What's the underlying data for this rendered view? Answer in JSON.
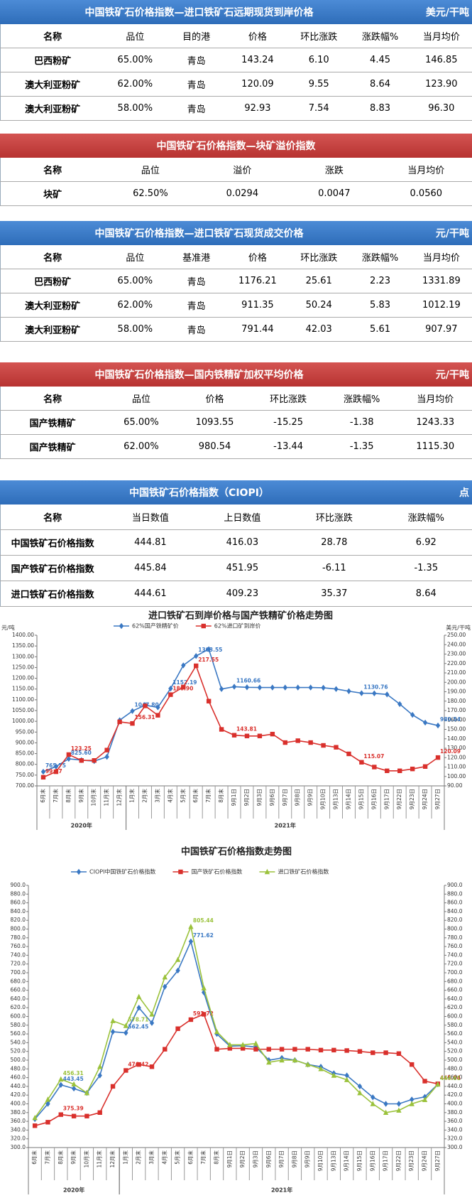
{
  "tables": [
    {
      "title": "中国铁矿石价格指数—进口铁矿石远期现货到岸价格",
      "unit": "美元/干吨",
      "columns": [
        "名称",
        "品位",
        "目的港",
        "价格",
        "环比涨跌",
        "涨跌幅%",
        "当月均价"
      ],
      "rows": [
        [
          "巴西粉矿",
          "65.00%",
          "青岛",
          "143.24",
          "6.10",
          "4.45",
          "146.85"
        ],
        [
          "澳大利亚粉矿",
          "62.00%",
          "青岛",
          "120.09",
          "9.55",
          "8.64",
          "123.90"
        ],
        [
          "澳大利亚粉矿",
          "58.00%",
          "青岛",
          "92.93",
          "7.54",
          "8.83",
          "96.30"
        ]
      ]
    },
    {
      "title": "中国铁矿石价格指数—块矿溢价指数",
      "columns": [
        "名称",
        "品位",
        "溢价",
        "涨跌",
        "当月均价"
      ],
      "rows": [
        [
          "块矿",
          "62.50%",
          "0.0294",
          "0.0047",
          "0.0560"
        ]
      ]
    },
    {
      "title": "中国铁矿石价格指数—进口铁矿石现货成交价格",
      "unit": "元/干吨",
      "columns": [
        "名称",
        "品位",
        "基准港",
        "价格",
        "环比涨跌",
        "涨跌幅%",
        "当月均价"
      ],
      "rows": [
        [
          "巴西粉矿",
          "65.00%",
          "青岛",
          "1176.21",
          "25.61",
          "2.23",
          "1331.89"
        ],
        [
          "澳大利亚粉矿",
          "62.00%",
          "青岛",
          "911.35",
          "50.24",
          "5.83",
          "1012.19"
        ],
        [
          "澳大利亚粉矿",
          "58.00%",
          "青岛",
          "791.44",
          "42.03",
          "5.61",
          "907.97"
        ]
      ]
    },
    {
      "title": "中国铁矿石价格指数—国内铁精矿加权平均价格",
      "unit": "元/干吨",
      "columns": [
        "名称",
        "品位",
        "价格",
        "环比涨跌",
        "涨跌幅%",
        "当月均价"
      ],
      "rows": [
        [
          "国产铁精矿",
          "65.00%",
          "1093.55",
          "-15.25",
          "-1.38",
          "1243.33"
        ],
        [
          "国产铁精矿",
          "62.00%",
          "980.54",
          "-13.44",
          "-1.35",
          "1115.30"
        ]
      ]
    },
    {
      "title": "中国铁矿石价格指数（CIOPI）",
      "unit": "点",
      "columns": [
        "名称",
        "当日数值",
        "上日数值",
        "环比涨跌",
        "涨跌幅%"
      ],
      "rows": [
        [
          "中国铁矿石价格指数",
          "444.81",
          "416.03",
          "28.78",
          "6.92"
        ],
        [
          "国产铁矿石价格指数",
          "445.84",
          "451.95",
          "-6.11",
          "-1.35"
        ],
        [
          "进口铁矿石价格指数",
          "444.61",
          "409.23",
          "35.37",
          "8.64"
        ]
      ]
    }
  ],
  "chart_data": [
    {
      "type": "line",
      "title": "进口铁矿石到岸价格与国产铁精矿价格走势图",
      "y_label": "元/吨",
      "y2_label": "美元/干吨",
      "categories": [
        "6月末",
        "7月末",
        "8月末",
        "9月末",
        "10月末",
        "11月末",
        "12月末",
        "1月末",
        "2月末",
        "3月末",
        "4月末",
        "5月末",
        "6月末",
        "7月末",
        "8月末",
        "9月1日",
        "9月2日",
        "9月3日",
        "9月6日",
        "9月7日",
        "9月8日",
        "9月9日",
        "9月10日",
        "9月13日",
        "9月14日",
        "9月15日",
        "9月16日",
        "9月17日",
        "9月22日",
        "9月23日",
        "9月24日",
        "9月27日"
      ],
      "groups": [
        {
          "label": "2020年",
          "count": 7
        },
        {
          "label": "2021年",
          "count": 25
        }
      ],
      "ylim": [
        700,
        1400
      ],
      "yticks": [
        {
          "value": 700,
          "label": "700.00"
        },
        {
          "value": 750,
          "label": "750.00"
        },
        {
          "value": 800,
          "label": "800.00"
        },
        {
          "value": 850,
          "label": "850.00"
        },
        {
          "value": 900,
          "label": "900.00"
        },
        {
          "value": 950,
          "label": "950.00"
        },
        {
          "value": 1000,
          "label": "1000.00"
        },
        {
          "value": 1050,
          "label": "1050.00"
        },
        {
          "value": 1100,
          "label": "1100.00"
        },
        {
          "value": 1150,
          "label": "1150.00"
        },
        {
          "value": 1200,
          "label": "1200.00"
        },
        {
          "value": 1250,
          "label": "1250.00"
        },
        {
          "value": 1300,
          "label": "1300.00"
        },
        {
          "value": 1350,
          "label": "1350.00"
        },
        {
          "value": 1400,
          "label": "1400.00"
        }
      ],
      "y2lim": [
        90,
        250
      ],
      "y2ticks": [
        {
          "value": 90,
          "label": "90.00"
        },
        {
          "value": 100,
          "label": "100.00"
        },
        {
          "value": 110,
          "label": "110.00"
        },
        {
          "value": 120,
          "label": "120.00"
        },
        {
          "value": 130,
          "label": "130.00"
        },
        {
          "value": 140,
          "label": "140.00"
        },
        {
          "value": 150,
          "label": "150.00"
        },
        {
          "value": 160,
          "label": "160.00"
        },
        {
          "value": 170,
          "label": "170.00"
        },
        {
          "value": 180,
          "label": "180.00"
        },
        {
          "value": 190,
          "label": "190.00"
        },
        {
          "value": 200,
          "label": "200.00"
        },
        {
          "value": 210,
          "label": "210.00"
        },
        {
          "value": 220,
          "label": "220.00"
        },
        {
          "value": 230,
          "label": "230.00"
        },
        {
          "value": 240,
          "label": "240.00"
        },
        {
          "value": 250,
          "label": "250.00"
        }
      ],
      "grid": false,
      "series": [
        {
          "name": "62%国产铁精矿价",
          "color": "#3a78c3",
          "marker": "diamond",
          "values": [
            765.75,
            790,
            825.6,
            820,
            815,
            835,
            1005,
            1047.8,
            1075,
            1065,
            1152.19,
            1260,
            1303.55,
            1335,
            1150,
            1160.66,
            1158,
            1157,
            1157,
            1157,
            1157,
            1157,
            1156,
            1150,
            1140,
            1130.76,
            1130,
            1125,
            1080,
            1030,
            993.98,
            980.54
          ],
          "value_labels": [
            "765.75",
            null,
            "825.60",
            null,
            null,
            null,
            null,
            "1047.80",
            null,
            null,
            "1152.19",
            null,
            "1303.55",
            null,
            null,
            "1160.66",
            null,
            null,
            null,
            null,
            null,
            null,
            null,
            null,
            null,
            "1130.76",
            null,
            null,
            null,
            null,
            null,
            "980.54"
          ]
        },
        {
          "name": "62%进口矿到岸价",
          "color": "#d9302c",
          "marker": "square",
          "axis": "y2",
          "values": [
            99.17,
            105,
            123.25,
            117,
            117,
            128,
            158,
            156.31,
            175,
            165,
            186.9,
            195,
            217.55,
            180,
            150,
            143.81,
            143,
            143,
            145,
            136,
            138,
            136,
            133,
            131,
            124,
            115.07,
            110,
            106,
            106,
            108,
            110.54,
            120.09
          ],
          "value_labels": [
            "99.17",
            null,
            "123.25",
            null,
            null,
            null,
            null,
            "156.31",
            null,
            null,
            "186.90",
            null,
            "217.55",
            null,
            null,
            "143.81",
            null,
            null,
            null,
            null,
            null,
            null,
            null,
            null,
            null,
            "115.07",
            null,
            null,
            null,
            null,
            null,
            "120.09"
          ]
        }
      ]
    },
    {
      "type": "line",
      "title": "中国铁矿石价格指数走势图",
      "categories": [
        "6月末",
        "7月末",
        "8月末",
        "9月末",
        "10月末",
        "11月末",
        "12月末",
        "1月末",
        "2月末",
        "3月末",
        "4月末",
        "5月末",
        "6月末",
        "7月末",
        "8月末",
        "9月1日",
        "9月2日",
        "9月3日",
        "9月6日",
        "9月7日",
        "9月8日",
        "9月9日",
        "9月10日",
        "9月13日",
        "9月14日",
        "9月15日",
        "9月16日",
        "9月17日",
        "9月22日",
        "9月23日",
        "9月24日",
        "9月27日"
      ],
      "groups": [
        {
          "label": "2020年",
          "count": 7
        },
        {
          "label": "2021年",
          "count": 25
        }
      ],
      "ylim": [
        300,
        900
      ],
      "yticks": [
        {
          "value": 300,
          "label": "300.0"
        },
        {
          "value": 320,
          "label": "320.0"
        },
        {
          "value": 340,
          "label": "340.0"
        },
        {
          "value": 360,
          "label": "360.0"
        },
        {
          "value": 380,
          "label": "380.0"
        },
        {
          "value": 400,
          "label": "400.0"
        },
        {
          "value": 420,
          "label": "420.0"
        },
        {
          "value": 440,
          "label": "440.0"
        },
        {
          "value": 460,
          "label": "460.0"
        },
        {
          "value": 480,
          "label": "480.0"
        },
        {
          "value": 500,
          "label": "500.0"
        },
        {
          "value": 520,
          "label": "520.0"
        },
        {
          "value": 540,
          "label": "540.0"
        },
        {
          "value": 560,
          "label": "560.0"
        },
        {
          "value": 580,
          "label": "580.0"
        },
        {
          "value": 600,
          "label": "600.0"
        },
        {
          "value": 620,
          "label": "620.0"
        },
        {
          "value": 640,
          "label": "640.0"
        },
        {
          "value": 660,
          "label": "660.0"
        },
        {
          "value": 680,
          "label": "680.0"
        },
        {
          "value": 700,
          "label": "700.0"
        },
        {
          "value": 720,
          "label": "720.0"
        },
        {
          "value": 740,
          "label": "740.0"
        },
        {
          "value": 760,
          "label": "760.0"
        },
        {
          "value": 780,
          "label": "780.0"
        },
        {
          "value": 800,
          "label": "800.0"
        },
        {
          "value": 820,
          "label": "820.0"
        },
        {
          "value": 840,
          "label": "840.0"
        },
        {
          "value": 860,
          "label": "860.0"
        },
        {
          "value": 880,
          "label": "880.0"
        },
        {
          "value": 900,
          "label": "900.0"
        }
      ],
      "y2lim": [
        300,
        900
      ],
      "y2ticks": [
        {
          "value": 300,
          "label": "300.0"
        },
        {
          "value": 320,
          "label": "320.0"
        },
        {
          "value": 340,
          "label": "340.0"
        },
        {
          "value": 360,
          "label": "360.0"
        },
        {
          "value": 380,
          "label": "380.0"
        },
        {
          "value": 400,
          "label": "400.0"
        },
        {
          "value": 420,
          "label": "420.0"
        },
        {
          "value": 440,
          "label": "440.0"
        },
        {
          "value": 460,
          "label": "460.0"
        },
        {
          "value": 480,
          "label": "480.0"
        },
        {
          "value": 500,
          "label": "500.0"
        },
        {
          "value": 520,
          "label": "520.0"
        },
        {
          "value": 540,
          "label": "540.0"
        },
        {
          "value": 560,
          "label": "560.0"
        },
        {
          "value": 580,
          "label": "580.0"
        },
        {
          "value": 600,
          "label": "600.0"
        },
        {
          "value": 620,
          "label": "620.0"
        },
        {
          "value": 640,
          "label": "640.0"
        },
        {
          "value": 660,
          "label": "660.0"
        },
        {
          "value": 680,
          "label": "680.0"
        },
        {
          "value": 700,
          "label": "700.0"
        },
        {
          "value": 720,
          "label": "720.0"
        },
        {
          "value": 740,
          "label": "740.0"
        },
        {
          "value": 760,
          "label": "760.0"
        },
        {
          "value": 780,
          "label": "780.0"
        },
        {
          "value": 800,
          "label": "800.0"
        },
        {
          "value": 820,
          "label": "820.0"
        },
        {
          "value": 840,
          "label": "840.0"
        },
        {
          "value": 860,
          "label": "860.0"
        },
        {
          "value": 880,
          "label": "880.0"
        },
        {
          "value": 900,
          "label": "900.0"
        }
      ],
      "grid": false,
      "series": [
        {
          "name": "CIOPI中国铁矿石价格指数",
          "color": "#3a78c3",
          "marker": "diamond",
          "values": [
            365,
            400,
            443.45,
            435,
            425,
            465,
            565,
            562.45,
            620,
            585,
            668,
            705,
            771.62,
            655,
            560,
            532,
            533,
            530,
            500,
            505,
            500,
            490,
            485,
            470,
            465,
            440,
            415,
            400,
            400,
            410,
            416.03,
            444.81
          ],
          "value_labels": [
            null,
            null,
            "443.45",
            null,
            null,
            null,
            null,
            "562.45",
            null,
            null,
            null,
            null,
            "771.62",
            null,
            null,
            null,
            null,
            null,
            null,
            null,
            null,
            null,
            null,
            null,
            null,
            null,
            null,
            null,
            null,
            null,
            null,
            "444.81"
          ]
        },
        {
          "name": "国产铁矿石价格指数",
          "color": "#d9302c",
          "marker": "square",
          "values": [
            350,
            358,
            375.39,
            372,
            372,
            380,
            440,
            476.42,
            490,
            485,
            525,
            572,
            592.72,
            605,
            525,
            527,
            527,
            525,
            525,
            525,
            525,
            525,
            523,
            523,
            522,
            520,
            517,
            517,
            515,
            490,
            451.95,
            445.84
          ],
          "value_labels": [
            null,
            null,
            "375.39",
            null,
            null,
            null,
            null,
            "476.42",
            null,
            null,
            null,
            null,
            "592.72",
            null,
            null,
            null,
            null,
            null,
            null,
            null,
            null,
            null,
            null,
            null,
            null,
            null,
            null,
            null,
            null,
            null,
            null,
            "445.84"
          ]
        },
        {
          "name": "进口铁矿石价格指数",
          "color": "#9bc23c",
          "marker": "triangle",
          "values": [
            368,
            410,
            456.31,
            445,
            425,
            485,
            590,
            578.71,
            645,
            605,
            690,
            730,
            805.44,
            665,
            565,
            535,
            535,
            538,
            495,
            500,
            500,
            490,
            480,
            465,
            455,
            425,
            400,
            380,
            385,
            400,
            409.23,
            444.61
          ],
          "value_labels": [
            null,
            null,
            "456.31",
            null,
            null,
            null,
            null,
            "578.71",
            null,
            null,
            null,
            null,
            "805.44",
            null,
            null,
            null,
            null,
            null,
            null,
            null,
            null,
            null,
            null,
            null,
            null,
            null,
            null,
            null,
            null,
            null,
            null,
            "444.61"
          ]
        }
      ]
    }
  ]
}
